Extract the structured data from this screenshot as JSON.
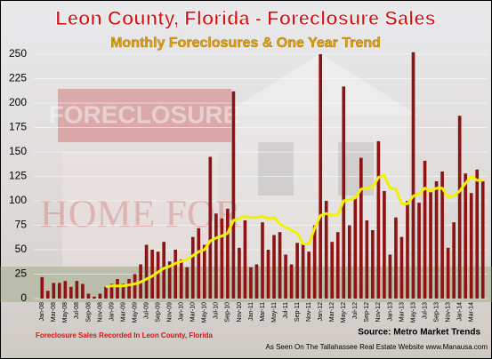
{
  "chart_data": {
    "type": "bar_line",
    "title": "Leon County, Florida - Foreclosure Sales",
    "subtitle": "Monthly Foreclosures & One Year Trend",
    "source": "Source: Metro Market Trends",
    "footnote": "Foreclosure Sales Recorded In Leon County, Florida",
    "website": "As Seen On The Tallahassee Real Estate Website www.Manausa.com",
    "background_sign": "FORECLOSURE",
    "background_sign_2": "HOME FOR",
    "categories": [
      "Jan-08",
      null,
      "Mar-08",
      null,
      "May-08",
      null,
      "Jul-08",
      null,
      "Sep-08",
      null,
      "Nov-08",
      null,
      "Jan-09",
      null,
      "Mar-09",
      null,
      "May-09",
      null,
      "Jul-09",
      null,
      "Sep-09",
      null,
      "Nov-09",
      null,
      "Jan-10",
      null,
      "Mar-10",
      null,
      "May-10",
      null,
      "Jul-10",
      null,
      "Sep-10",
      null,
      "Nov-10",
      null,
      "Jan-11",
      null,
      "Mar-11",
      null,
      "May-11",
      null,
      "Jul-11",
      null,
      "Sep-11",
      null,
      "Nov-11",
      null,
      "Jan-12",
      null,
      "Mar-12",
      null,
      "May-12",
      null,
      "Jul-12",
      null,
      "Sep-12",
      null,
      "Nov-12",
      null,
      "Jan-13",
      null,
      "Mar-13",
      null,
      "May-13",
      null,
      "Jul-13",
      null,
      "Sep-13",
      null,
      "Nov-13",
      null,
      "Jan-14",
      null,
      "Mar-14",
      null,
      null
    ],
    "series": [
      {
        "type": "bar",
        "color": "#8e1414",
        "values": [
          22,
          8,
          16,
          16,
          18,
          12,
          18,
          15,
          5,
          2,
          5,
          12,
          15,
          20,
          15,
          20,
          25,
          35,
          55,
          50,
          48,
          58,
          38,
          50,
          40,
          32,
          63,
          72,
          55,
          145,
          87,
          82,
          92,
          212,
          52,
          80,
          32,
          35,
          78,
          50,
          65,
          68,
          45,
          35,
          57,
          56,
          48,
          75,
          250,
          100,
          58,
          68,
          217,
          75,
          104,
          144,
          80,
          70,
          161,
          110,
          45,
          83,
          63,
          100,
          252,
          98,
          141,
          110,
          120,
          130,
          52,
          78,
          187,
          128,
          108,
          132,
          120
        ]
      },
      {
        "type": "line",
        "color": "#f2f200",
        "values": [
          null,
          null,
          null,
          null,
          null,
          null,
          null,
          null,
          null,
          null,
          null,
          12,
          13,
          13,
          13,
          14,
          15,
          17,
          20,
          23,
          27,
          31,
          33,
          36,
          38,
          40,
          44,
          48,
          50,
          59,
          62,
          64,
          67,
          80,
          82,
          84,
          83,
          83,
          84,
          82,
          83,
          76,
          73,
          70,
          67,
          56,
          56,
          72,
          85,
          87,
          85,
          86,
          100,
          101,
          103,
          112,
          113,
          114,
          124,
          126,
          113,
          112,
          97,
          97,
          105,
          107,
          113,
          110,
          113,
          113,
          104,
          105,
          110,
          118,
          125,
          121,
          121
        ]
      }
    ],
    "ylim": [
      0,
      250
    ],
    "yticks": [
      0,
      25,
      50,
      75,
      100,
      125,
      150,
      175,
      200,
      225,
      250
    ],
    "grid": true
  }
}
